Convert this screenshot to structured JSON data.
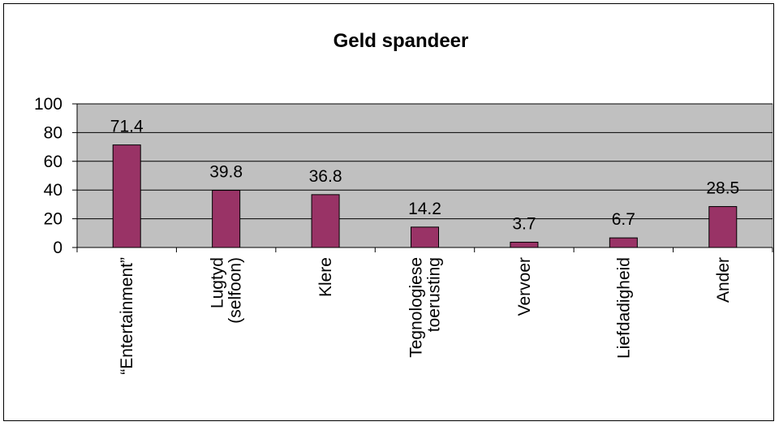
{
  "chart_data": {
    "type": "bar",
    "title": "Geld spandeer",
    "categories": [
      [
        "“Entertainment”"
      ],
      [
        "Lugtyd",
        "(selfoon)"
      ],
      [
        "Klere"
      ],
      [
        "Tegnologiese",
        "toerusting"
      ],
      [
        "Vervoer"
      ],
      [
        "Liefdadigheid"
      ],
      [
        "Ander"
      ]
    ],
    "values": [
      71.4,
      39.8,
      36.8,
      14.2,
      3.7,
      6.7,
      28.5
    ],
    "value_labels": [
      "71.4",
      "39.8",
      "36.8",
      "14.2",
      "3.7",
      "6.7",
      "28.5"
    ],
    "ylim": [
      0,
      100
    ],
    "yticks": [
      0,
      20,
      40,
      60,
      80,
      100
    ],
    "grid": true,
    "legend": "none",
    "colors": {
      "bar": "#993366",
      "plot_background": "#c0c0c0",
      "gridline": "#000000"
    }
  }
}
